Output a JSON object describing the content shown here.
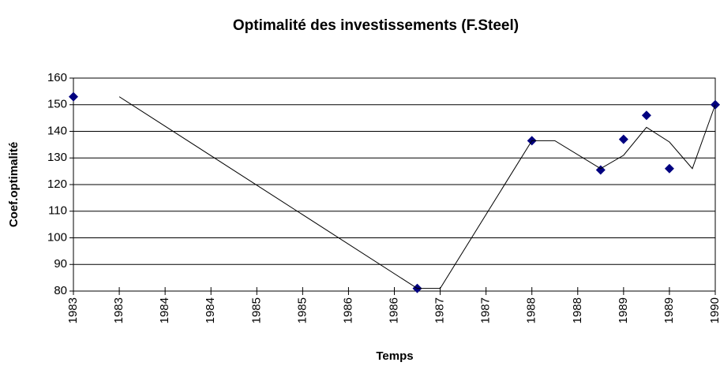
{
  "chart_data": {
    "type": "scatter",
    "title": "Optimalité des investissements (F.Steel)",
    "x_label": "Temps",
    "y_label": "Coef.optimalité",
    "xlim": [
      1983,
      1990
    ],
    "xticks": [
      1983,
      {
        "value": 1983.5,
        "label": "1983"
      },
      1984,
      {
        "value": 1984.5,
        "label": "1984"
      },
      1985,
      {
        "value": 1985.5,
        "label": "1985"
      },
      1986,
      {
        "value": 1986.5,
        "label": "1986"
      },
      1987,
      {
        "value": 1987.5,
        "label": "1987"
      },
      1988,
      {
        "value": 1988.5,
        "label": "1988"
      },
      1989,
      {
        "value": 1989.5,
        "label": "1989"
      },
      1990
    ],
    "ylim": [
      80,
      160
    ],
    "yticks": [
      80,
      90,
      100,
      110,
      120,
      130,
      140,
      150,
      160
    ],
    "grid": true,
    "series": [
      {
        "mode": "markers",
        "color": "#000080",
        "x": [
          1983,
          1986.75,
          1988,
          1988.75,
          1989,
          1989.25,
          1989.5,
          1990
        ],
        "values": [
          153,
          81,
          136.5,
          125.5,
          137,
          146,
          126,
          150
        ]
      },
      {
        "mode": "line",
        "color": "#000000",
        "x": [
          1983.5,
          1986.75,
          1987,
          1988,
          1988.25,
          1988.75,
          1989,
          1989.25,
          1989.5,
          1989.75,
          1990
        ],
        "values": [
          153,
          81,
          81,
          136.5,
          136.5,
          126,
          131,
          141.5,
          136,
          126,
          150
        ]
      }
    ]
  }
}
